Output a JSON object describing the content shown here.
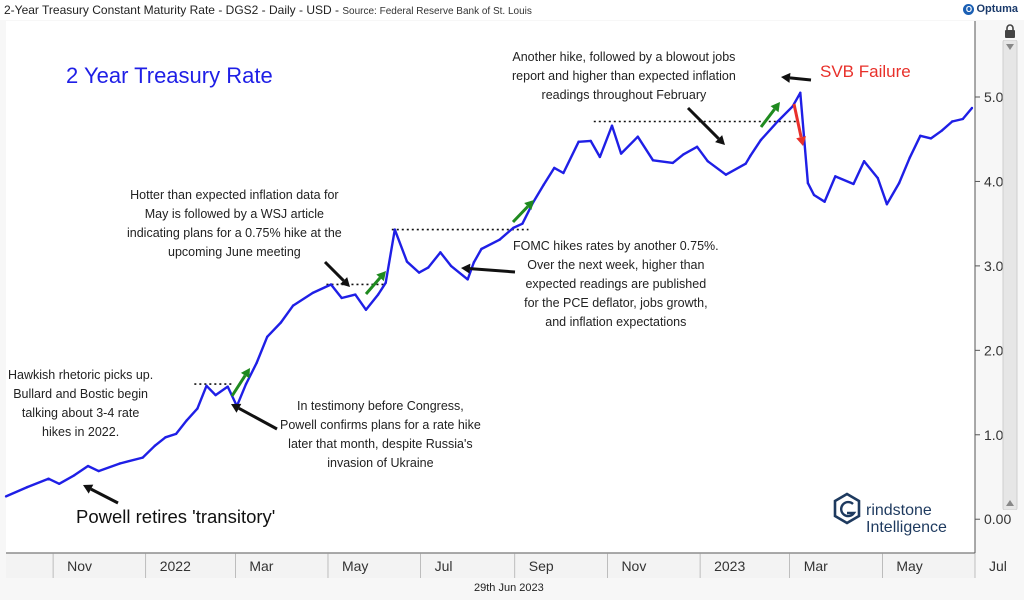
{
  "header": {
    "title": "2-Year Treasury Constant Maturity Rate - DGS2 - Daily - USD",
    "source": "Source: Federal Reserve Bank of St. Louis",
    "brand": "Optuma"
  },
  "footer": {
    "date": "29th Jun 2023"
  },
  "logo": {
    "line1": "rindstone",
    "line2": "Intelligence",
    "icon": "grindstone-hex-g-icon"
  },
  "chart_data": {
    "type": "line",
    "title": "2 Year Treasury Rate",
    "x_axis": {
      "ticks": [
        "Nov",
        "2022",
        "Mar",
        "May",
        "Jul",
        "Sep",
        "Nov",
        "2023",
        "Mar",
        "May",
        "Jul"
      ],
      "tick_months": [
        "2021-11",
        "2022-01",
        "2022-03",
        "2022-05",
        "2022-07",
        "2022-09",
        "2022-11",
        "2023-01",
        "2023-03",
        "2023-05",
        "2023-07"
      ],
      "range": [
        "2021-10-01",
        "2023-07-01"
      ]
    },
    "y_axis": {
      "ticks": [
        "0.00",
        "1.00",
        "2.00",
        "3.00",
        "4.00",
        "5.00"
      ],
      "range": [
        -0.4,
        5.9
      ]
    },
    "series": [
      {
        "color": "#1f1fe6",
        "points": [
          [
            "2021-10-01",
            0.27
          ],
          [
            "2021-10-15",
            0.38
          ],
          [
            "2021-10-29",
            0.48
          ],
          [
            "2021-11-05",
            0.42
          ],
          [
            "2021-11-15",
            0.52
          ],
          [
            "2021-11-24",
            0.63
          ],
          [
            "2021-12-01",
            0.57
          ],
          [
            "2021-12-15",
            0.66
          ],
          [
            "2021-12-30",
            0.73
          ],
          [
            "2022-01-07",
            0.87
          ],
          [
            "2022-01-14",
            0.97
          ],
          [
            "2022-01-21",
            1.01
          ],
          [
            "2022-01-28",
            1.17
          ],
          [
            "2022-02-04",
            1.31
          ],
          [
            "2022-02-10",
            1.58
          ],
          [
            "2022-02-16",
            1.47
          ],
          [
            "2022-02-24",
            1.57
          ],
          [
            "2022-03-02",
            1.34
          ],
          [
            "2022-03-08",
            1.6
          ],
          [
            "2022-03-15",
            1.85
          ],
          [
            "2022-03-22",
            2.16
          ],
          [
            "2022-03-31",
            2.33
          ],
          [
            "2022-04-08",
            2.53
          ],
          [
            "2022-04-21",
            2.68
          ],
          [
            "2022-05-03",
            2.78
          ],
          [
            "2022-05-10",
            2.62
          ],
          [
            "2022-05-19",
            2.66
          ],
          [
            "2022-05-26",
            2.48
          ],
          [
            "2022-06-03",
            2.66
          ],
          [
            "2022-06-08",
            2.8
          ],
          [
            "2022-06-14",
            3.43
          ],
          [
            "2022-06-22",
            3.05
          ],
          [
            "2022-06-30",
            2.92
          ],
          [
            "2022-07-06",
            2.98
          ],
          [
            "2022-07-14",
            3.16
          ],
          [
            "2022-07-21",
            3.0
          ],
          [
            "2022-08-01",
            2.84
          ],
          [
            "2022-08-05",
            3.04
          ],
          [
            "2022-08-10",
            3.2
          ],
          [
            "2022-08-22",
            3.31
          ],
          [
            "2022-08-31",
            3.45
          ],
          [
            "2022-09-06",
            3.5
          ],
          [
            "2022-09-13",
            3.75
          ],
          [
            "2022-09-20",
            3.96
          ],
          [
            "2022-09-27",
            4.16
          ],
          [
            "2022-10-03",
            4.1
          ],
          [
            "2022-10-13",
            4.47
          ],
          [
            "2022-10-21",
            4.48
          ],
          [
            "2022-10-27",
            4.29
          ],
          [
            "2022-11-04",
            4.66
          ],
          [
            "2022-11-10",
            4.33
          ],
          [
            "2022-11-21",
            4.53
          ],
          [
            "2022-12-01",
            4.25
          ],
          [
            "2022-12-14",
            4.22
          ],
          [
            "2022-12-21",
            4.32
          ],
          [
            "2022-12-30",
            4.41
          ],
          [
            "2023-01-06",
            4.24
          ],
          [
            "2023-01-18",
            4.08
          ],
          [
            "2023-01-31",
            4.21
          ],
          [
            "2023-02-03",
            4.3
          ],
          [
            "2023-02-10",
            4.49
          ],
          [
            "2023-02-21",
            4.71
          ],
          [
            "2023-03-03",
            4.89
          ],
          [
            "2023-03-08",
            5.05
          ],
          [
            "2023-03-13",
            3.98
          ],
          [
            "2023-03-17",
            3.84
          ],
          [
            "2023-03-24",
            3.76
          ],
          [
            "2023-03-31",
            4.06
          ],
          [
            "2023-04-12",
            3.97
          ],
          [
            "2023-04-19",
            4.24
          ],
          [
            "2023-04-28",
            4.04
          ],
          [
            "2023-05-04",
            3.73
          ],
          [
            "2023-05-12",
            3.98
          ],
          [
            "2023-05-19",
            4.28
          ],
          [
            "2023-05-26",
            4.54
          ],
          [
            "2023-06-02",
            4.51
          ],
          [
            "2023-06-09",
            4.6
          ],
          [
            "2023-06-16",
            4.71
          ],
          [
            "2023-06-23",
            4.74
          ],
          [
            "2023-06-29",
            4.87
          ]
        ]
      }
    ],
    "reference_lines": [
      {
        "from": "2022-02-02",
        "to": "2022-02-28",
        "y": 1.6
      },
      {
        "from": "2022-04-30",
        "to": "2022-06-08",
        "y": 2.78
      },
      {
        "from": "2022-06-12",
        "to": "2022-09-10",
        "y": 3.43
      },
      {
        "from": "2022-10-23",
        "to": "2023-03-06",
        "y": 4.71
      }
    ],
    "annotations": [
      {
        "id": "a1",
        "lines": [
          "Hawkish rhetoric picks up.",
          "Bullard and Bostic begin",
          "talking about 3-4 rate",
          "hikes in 2022."
        ]
      },
      {
        "id": "a2",
        "lines": [
          "In testimony before Congress,",
          "Powell confirms plans for a rate hike",
          "later that month, despite Russia's",
          "invasion of Ukraine"
        ]
      },
      {
        "id": "a3",
        "lines": [
          "Hotter than expected inflation data for",
          "May is followed by a WSJ article",
          "indicating plans for a 0.75% hike at the",
          "upcoming June meeting"
        ]
      },
      {
        "id": "a4",
        "lines": [
          "FOMC hikes rates by another 0.75%.",
          "Over the next week, higher than",
          "expected readings are published",
          "for the PCE deflator, jobs growth,",
          "and inflation expectations"
        ]
      },
      {
        "id": "a5",
        "lines": [
          "Another hike, followed by a blowout jobs",
          "report and higher than expected inflation",
          "readings throughout February"
        ]
      },
      {
        "id": "powell",
        "text": "Powell retires 'transitory'"
      },
      {
        "id": "svb",
        "text": "SVB Failure",
        "color": "#e8302a"
      }
    ],
    "colors": {
      "line": "#1f1fe6",
      "up_arrow": "#1f8a1f",
      "down_arrow": "#e8302a"
    }
  }
}
